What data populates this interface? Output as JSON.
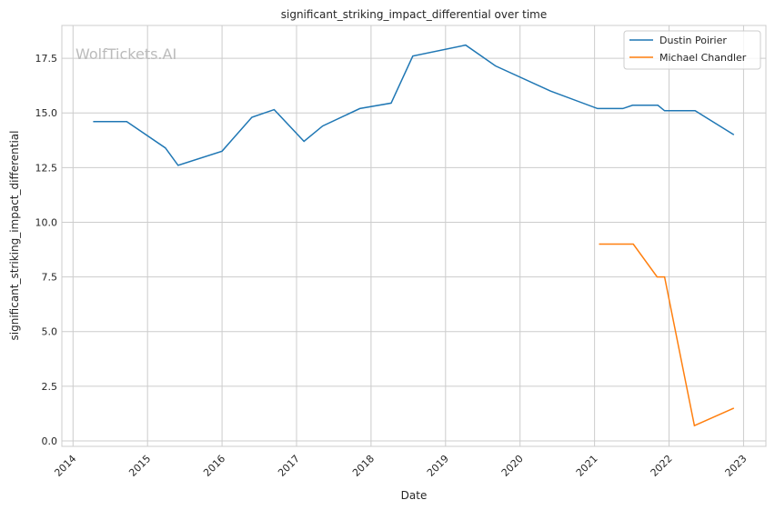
{
  "chart_data": {
    "type": "line",
    "title": "significant_striking_impact_differential over time",
    "xlabel": "Date",
    "ylabel": "significant_striking_impact_differential",
    "watermark": "WolfTickets.AI",
    "xlim": [
      2013.85,
      2023.3
    ],
    "ylim": [
      -0.25,
      19.0
    ],
    "xticks": [
      2014,
      2015,
      2016,
      2017,
      2018,
      2019,
      2020,
      2021,
      2022,
      2023
    ],
    "xtick_labels": [
      "2014",
      "2015",
      "2016",
      "2017",
      "2018",
      "2019",
      "2020",
      "2021",
      "2022",
      "2023"
    ],
    "yticks": [
      0,
      2.5,
      5,
      7.5,
      10,
      12.5,
      15,
      17.5
    ],
    "ytick_labels": [
      "0.0",
      "2.5",
      "5.0",
      "7.5",
      "10.0",
      "12.5",
      "15.0",
      "17.5"
    ],
    "grid": true,
    "legend_position": "top-right",
    "series": [
      {
        "name": "Dustin Poirier",
        "color": "#1f77b4",
        "x": [
          2014.27,
          2014.72,
          2015.24,
          2015.41,
          2016.0,
          2016.4,
          2016.7,
          2017.1,
          2017.35,
          2017.85,
          2018.27,
          2018.56,
          2019.27,
          2019.67,
          2020.41,
          2021.04,
          2021.38,
          2021.51,
          2021.85,
          2021.94,
          2022.35,
          2022.87
        ],
        "y": [
          14.6,
          14.6,
          13.4,
          12.6,
          13.25,
          14.8,
          15.15,
          13.7,
          14.4,
          15.2,
          15.45,
          17.6,
          18.1,
          17.15,
          16.0,
          15.2,
          15.2,
          15.35,
          15.35,
          15.1,
          15.1,
          14.0
        ]
      },
      {
        "name": "Michael Chandler",
        "color": "#ff7f0e",
        "x": [
          2021.06,
          2021.52,
          2021.84,
          2021.94,
          2022.34,
          2022.87
        ],
        "y": [
          9.0,
          9.0,
          7.5,
          7.5,
          0.7,
          1.5
        ]
      }
    ]
  }
}
